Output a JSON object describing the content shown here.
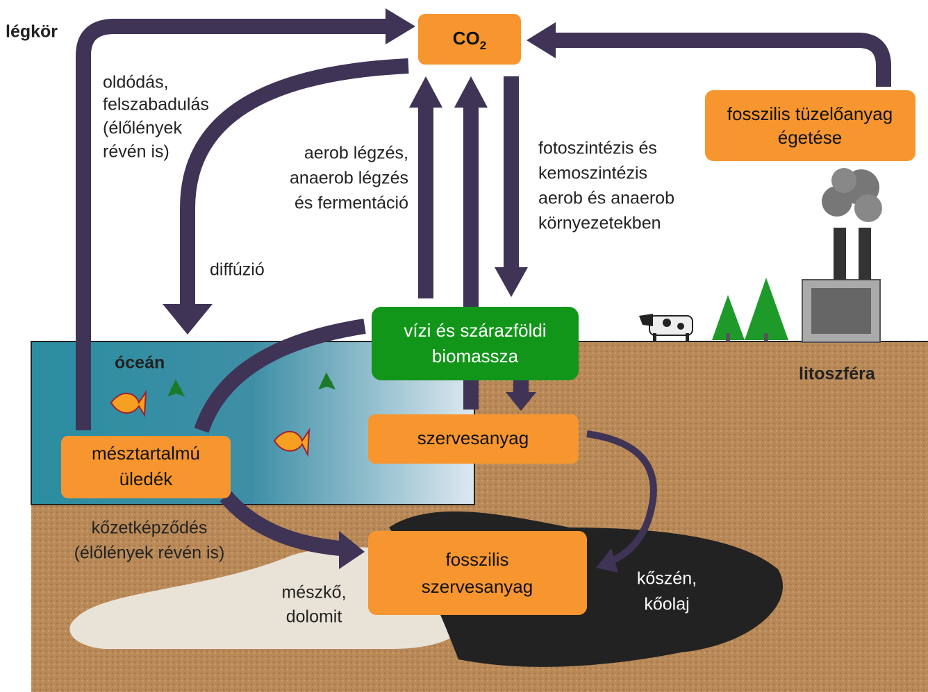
{
  "atmosphere_label": "légkör",
  "ocean_label": "óceán",
  "lithosphere_label": "litoszféra",
  "nodes": [
    {
      "text": "CO",
      "subscript": "2"
    },
    {
      "lines": [
        "fosszilis tüzelőanyag",
        "égetése"
      ]
    },
    {
      "lines": [
        "vízi és szárazföldi",
        "biomassza"
      ]
    },
    {
      "lines": [
        "szervesanyag"
      ]
    },
    {
      "lines": [
        "mésztartalmú",
        "üledék"
      ]
    },
    {
      "lines": [
        "fosszilis",
        "szervesanyag"
      ]
    }
  ],
  "process_labels": [
    {
      "lines": [
        "oldódás,",
        "felszabadulás",
        "(élőlények",
        "révén is)"
      ]
    },
    {
      "lines": [
        "aerob légzés,",
        "anaerob légzés",
        "és fermentáció"
      ]
    },
    {
      "lines": [
        "fotoszintézis és",
        "kemoszintézis",
        "aerob és anaerob",
        "környezetekben"
      ]
    },
    {
      "lines": [
        "diffúzió"
      ]
    },
    {
      "lines": [
        "kőzetképződés",
        "(élőlények révén is)"
      ]
    }
  ],
  "deposit_labels": [
    {
      "lines": [
        "mészkő,",
        "dolomit"
      ]
    },
    {
      "lines": [
        "kőszén,",
        "kőolaj"
      ]
    }
  ]
}
